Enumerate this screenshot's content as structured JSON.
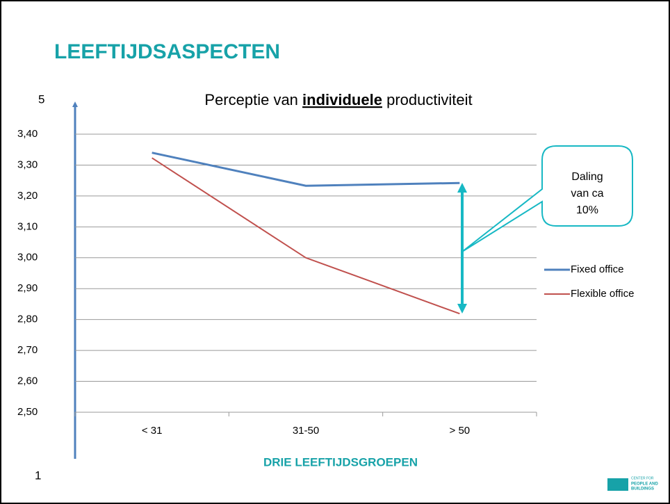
{
  "slide_title": "LEEFTIJDSASPECTEN",
  "chart_data": {
    "type": "line",
    "title": [
      "Perceptie van",
      "individuele",
      "productiviteit"
    ],
    "x_axis_label": "DRIE LEEFTIJDSGROEPEN",
    "axis_arrow_top": "5",
    "axis_arrow_bottom": "1",
    "categories": [
      "< 31",
      "31-50",
      "> 50"
    ],
    "series": [
      {
        "name": "Fixed office",
        "color": "#4f81bd",
        "values": [
          3.34,
          3.233,
          3.242
        ]
      },
      {
        "name": "Flexible office",
        "color": "#c0504d",
        "values": [
          3.323,
          3.0,
          2.819
        ]
      }
    ],
    "ylim": [
      2.5,
      3.4
    ],
    "yticks": [
      {
        "value": 2.5,
        "label": "2,50"
      },
      {
        "value": 2.6,
        "label": "2,60"
      },
      {
        "value": 2.7,
        "label": "2,70"
      },
      {
        "value": 2.8,
        "label": "2,80"
      },
      {
        "value": 2.9,
        "label": "2,90"
      },
      {
        "value": 3.0,
        "label": "3,00"
      },
      {
        "value": 3.1,
        "label": "3,10"
      },
      {
        "value": 3.2,
        "label": "3,20"
      },
      {
        "value": 3.3,
        "label": "3,30"
      },
      {
        "value": 3.4,
        "label": "3,40"
      }
    ],
    "grid": true,
    "legend": "right",
    "callout": [
      "Daling",
      "van ca",
      "10%"
    ]
  },
  "logo": [
    "CENTER FOR",
    "PEOPLE AND",
    "BUILDINGS"
  ]
}
